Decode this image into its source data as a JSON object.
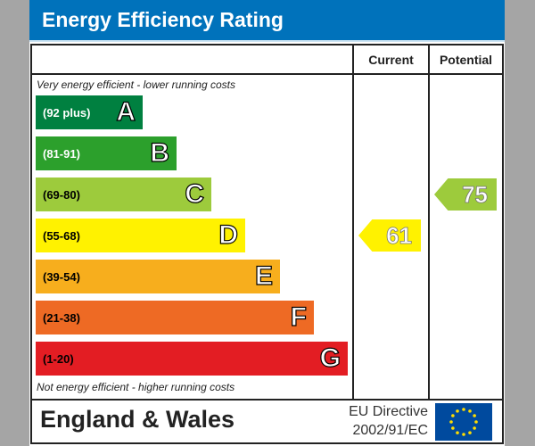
{
  "chart_data": {
    "type": "bar",
    "title": "Energy Efficiency Rating",
    "columns": [
      "Current",
      "Potential"
    ],
    "top_note": "Very energy efficient - lower running costs",
    "bottom_note": "Not energy efficient - higher running costs",
    "bands": [
      {
        "letter": "A",
        "range": "(92 plus)",
        "color": "#008040",
        "text_color": "#ffffff"
      },
      {
        "letter": "B",
        "range": "(81-91)",
        "color": "#2ca02c",
        "text_color": "#ffffff"
      },
      {
        "letter": "C",
        "range": "(69-80)",
        "color": "#9dcb3c",
        "text_color": "#000000"
      },
      {
        "letter": "D",
        "range": "(55-68)",
        "color": "#fff200",
        "text_color": "#000000"
      },
      {
        "letter": "E",
        "range": "(39-54)",
        "color": "#f7ae1d",
        "text_color": "#000000"
      },
      {
        "letter": "F",
        "range": "(21-38)",
        "color": "#ee6a24",
        "text_color": "#000000"
      },
      {
        "letter": "G",
        "range": "(1-20)",
        "color": "#e31d23",
        "text_color": "#000000"
      }
    ],
    "current": {
      "value": "61",
      "band": "D",
      "color": "#fff200"
    },
    "potential": {
      "value": "75",
      "band": "C",
      "color": "#9dcb3c"
    }
  },
  "footer": {
    "region": "England & Wales",
    "directive_line1": "EU Directive",
    "directive_line2": "2002/91/EC"
  }
}
